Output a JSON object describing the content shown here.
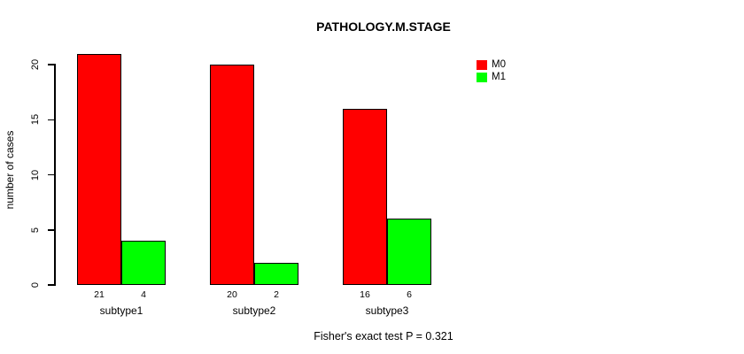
{
  "title": "PATHOLOGY.M.STAGE",
  "footer_note": "Fisher's exact test P = 0.321",
  "colors": {
    "m0": "#FF0000",
    "m1": "#00FF00",
    "axis": "#000000",
    "background": "#FFFFFF"
  },
  "chart_data": {
    "type": "bar",
    "title": "PATHOLOGY.M.STAGE",
    "xlabel": "",
    "ylabel": "number of cases",
    "categories": [
      "subtype1",
      "subtype2",
      "subtype3"
    ],
    "series": [
      {
        "name": "M0",
        "color": "#FF0000",
        "values": [
          21,
          20,
          16
        ]
      },
      {
        "name": "M1",
        "color": "#00FF00",
        "values": [
          4,
          2,
          6
        ]
      }
    ],
    "bar_value_labels": [
      [
        21,
        4
      ],
      [
        20,
        2
      ],
      [
        16,
        6
      ]
    ],
    "yticks": [
      0,
      5,
      10,
      15,
      20
    ],
    "ylim": [
      0,
      21
    ],
    "grid": false,
    "legend_position": "top-right",
    "annotation": "Fisher's exact test P = 0.321"
  }
}
